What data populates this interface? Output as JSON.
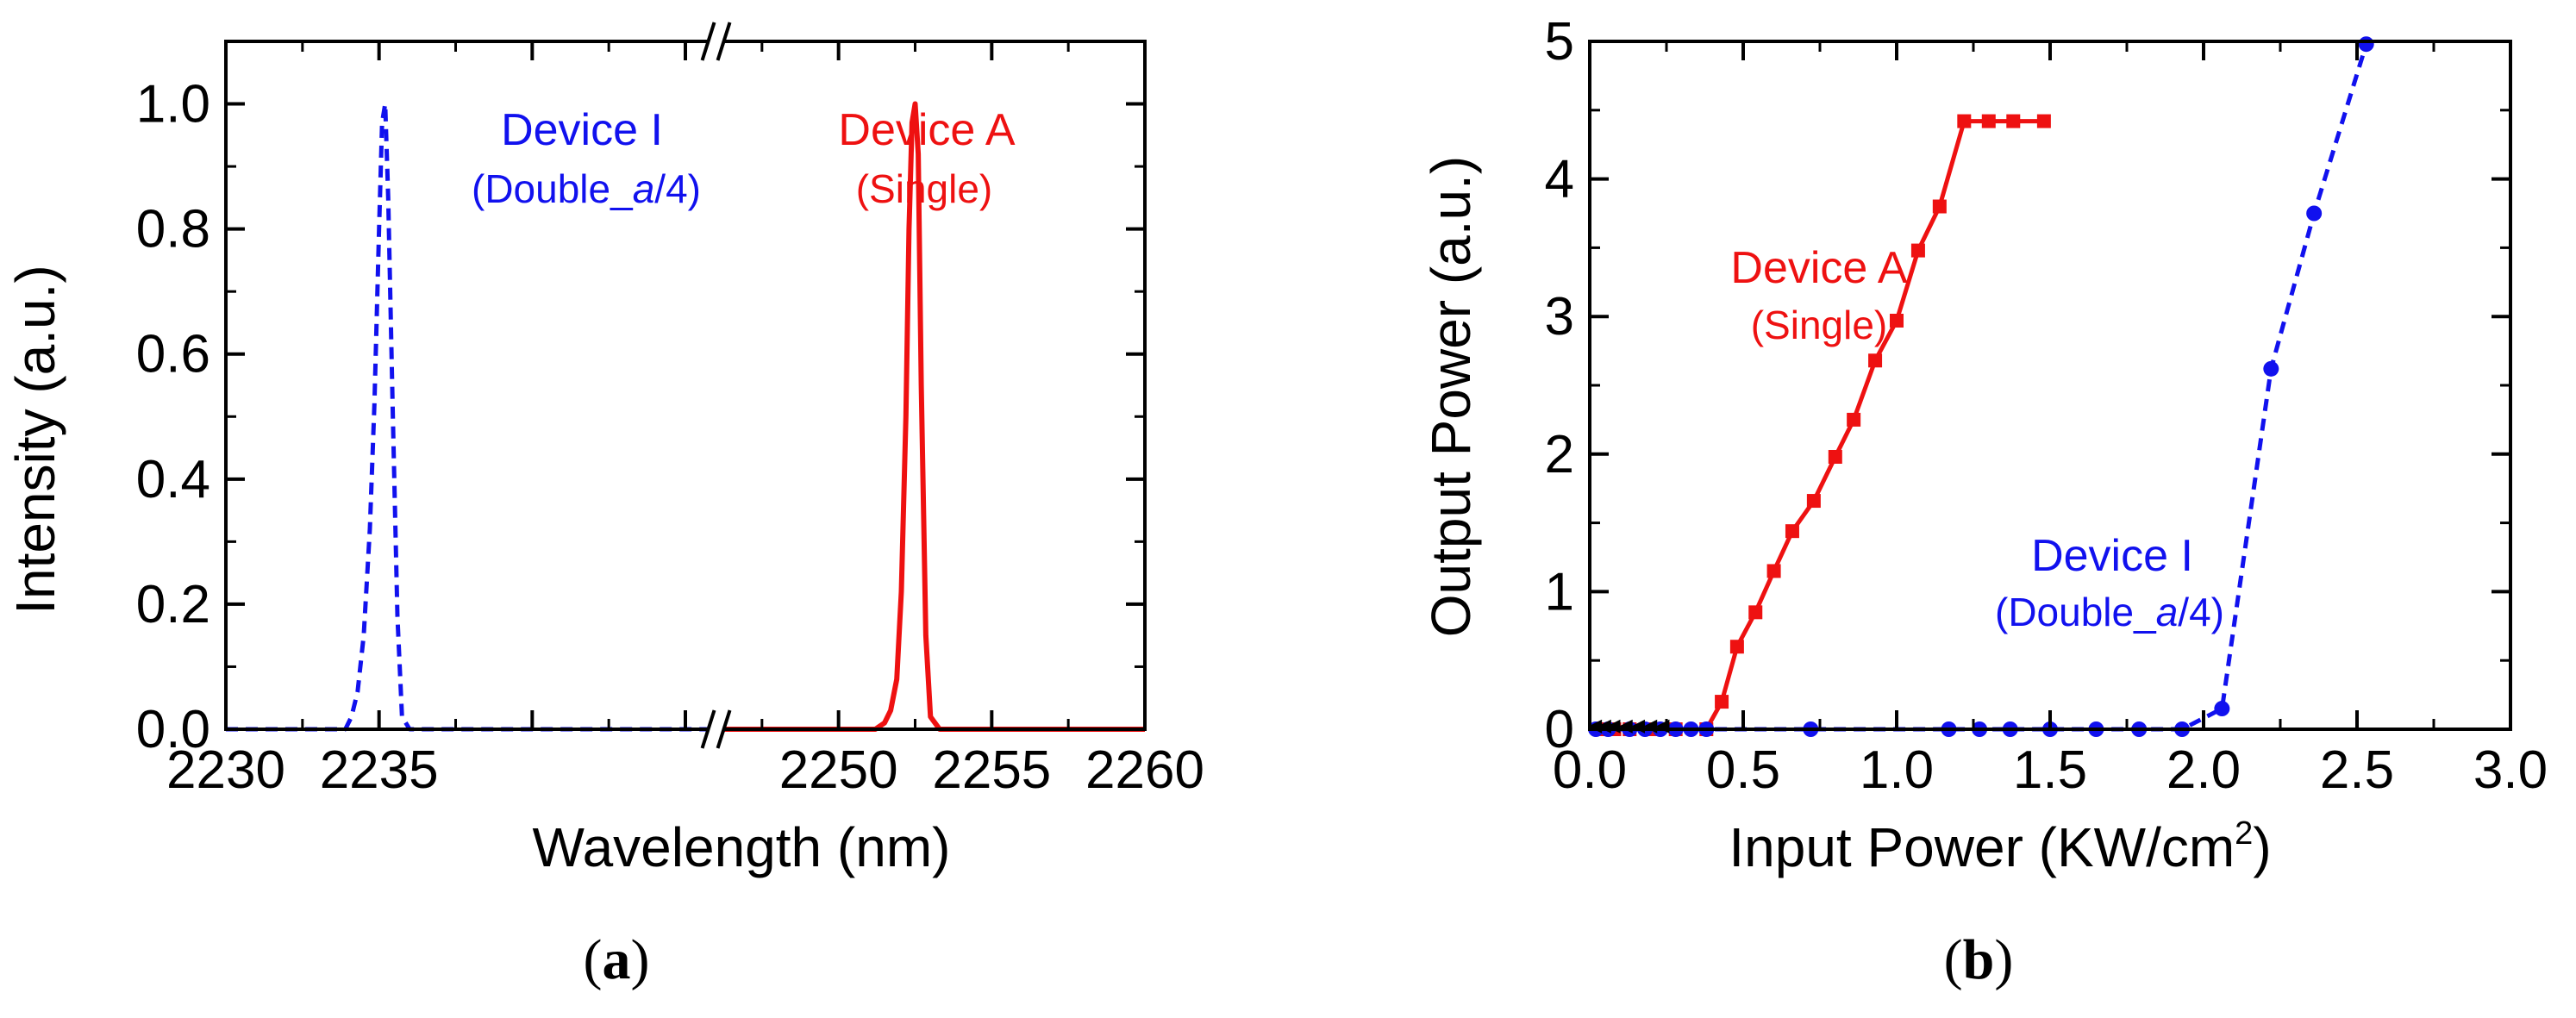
{
  "colors": {
    "device_a": "#ee1111",
    "device_i": "#1111ee",
    "axis": "#000000",
    "extra_marker": "#000000"
  },
  "chart_data": [
    {
      "type": "line",
      "panel_label": {
        "open": "(",
        "letter": "a",
        "close": ")"
      },
      "xlabel": "Wavelength (nm)",
      "ylabel": "Intensity (a.u.)",
      "xlim": [
        2230,
        2260
      ],
      "ylim": [
        0,
        1.1
      ],
      "axis_break_x": 2246,
      "xticks": [
        2230,
        2235,
        2240,
        2245,
        2250,
        2255,
        2260
      ],
      "xtick_labels": [
        "2230",
        "2235",
        "",
        "",
        "2250",
        "2255",
        "2260"
      ],
      "yticks": [
        0.0,
        0.2,
        0.4,
        0.6,
        0.8,
        1.0
      ],
      "ytick_labels": [
        "0.0",
        "0.2",
        "0.4",
        "0.6",
        "0.8",
        "1.0"
      ],
      "grid": false,
      "series": [
        {
          "name": "Device I",
          "style": "dashed",
          "x": [
            2230,
            2233.9,
            2234.1,
            2234.3,
            2234.5,
            2234.7,
            2234.85,
            2235.0,
            2235.1,
            2235.2,
            2235.3,
            2235.45,
            2235.6,
            2235.75,
            2236,
            2246
          ],
          "y": [
            0,
            0,
            0.02,
            0.06,
            0.15,
            0.32,
            0.52,
            0.8,
            0.97,
            1.0,
            0.85,
            0.5,
            0.18,
            0.02,
            0,
            0
          ]
        },
        {
          "name": "Device A",
          "style": "solid",
          "x": [
            2246,
            2251.2,
            2251.5,
            2251.7,
            2251.9,
            2252.05,
            2252.2,
            2252.3,
            2252.4,
            2252.5,
            2252.6,
            2252.7,
            2252.85,
            2253.0,
            2253.3,
            2260
          ],
          "y": [
            0,
            0,
            0.01,
            0.03,
            0.08,
            0.22,
            0.5,
            0.8,
            0.97,
            1.0,
            0.92,
            0.55,
            0.15,
            0.02,
            0,
            0
          ]
        }
      ],
      "annotations": [
        {
          "series": "Device I",
          "title": "Device I",
          "detail": {
            "before": "(Double_",
            "italic": "a",
            "after": "/4)"
          }
        },
        {
          "series": "Device A",
          "title": "Device A",
          "detail": {
            "before": "(Single)",
            "italic": "",
            "after": ""
          }
        }
      ]
    },
    {
      "type": "line",
      "panel_label": {
        "open": "(",
        "letter": "b",
        "close": ")"
      },
      "xlabel": {
        "main": "Input Power (KW/cm",
        "sup": "2",
        "end": ")"
      },
      "ylabel": "Output Power (a.u.)",
      "xlim": [
        0,
        3.0
      ],
      "ylim": [
        0,
        5
      ],
      "xticks": [
        0.0,
        0.5,
        1.0,
        1.5,
        2.0,
        2.5,
        3.0
      ],
      "xtick_labels": [
        "0.0",
        "0.5",
        "1.0",
        "1.5",
        "2.0",
        "2.5",
        "3.0"
      ],
      "yticks": [
        0,
        1,
        2,
        3,
        4,
        5
      ],
      "ytick_labels": [
        "0",
        "1",
        "2",
        "3",
        "4",
        "5"
      ],
      "grid": false,
      "series": [
        {
          "name": "Device A",
          "style": "solid",
          "marker": "square",
          "x": [
            0.03,
            0.08,
            0.13,
            0.2,
            0.28,
            0.38,
            0.43,
            0.48,
            0.54,
            0.6,
            0.66,
            0.73,
            0.8,
            0.86,
            0.93,
            1.0,
            1.07,
            1.14,
            1.22,
            1.3,
            1.38,
            1.48
          ],
          "y": [
            0,
            0,
            0,
            0,
            0,
            0,
            0.2,
            0.6,
            0.85,
            1.15,
            1.44,
            1.66,
            1.98,
            2.25,
            2.68,
            2.97,
            3.48,
            3.8,
            4.42,
            4.42,
            4.42,
            4.42
          ]
        },
        {
          "name": "Device I",
          "style": "dashed",
          "marker": "circle",
          "x": [
            0.02,
            0.06,
            0.13,
            0.18,
            0.23,
            0.28,
            0.33,
            0.38,
            0.72,
            1.17,
            1.27,
            1.37,
            1.5,
            1.65,
            1.79,
            1.93,
            2.06,
            2.22,
            2.36,
            2.53
          ],
          "y": [
            0,
            0,
            0,
            0,
            0,
            0,
            0,
            0,
            0,
            0,
            0,
            0,
            0,
            0,
            0,
            0,
            0.15,
            2.62,
            3.75,
            4.98
          ]
        },
        {
          "name": "",
          "style": "solid",
          "marker": "triangle-left",
          "x": [
            0.02,
            0.05,
            0.08,
            0.12,
            0.16,
            0.2,
            0.24
          ],
          "y": [
            0.02,
            0.02,
            0.02,
            0.02,
            0.02,
            0.02,
            0.02
          ]
        }
      ],
      "annotations": [
        {
          "series": "Device A",
          "title": "Device A",
          "detail": {
            "before": "(Single)",
            "italic": "",
            "after": ""
          }
        },
        {
          "series": "Device I",
          "title": "Device I",
          "detail": {
            "before": "(Double_",
            "italic": "a",
            "after": "/4)"
          }
        }
      ]
    }
  ]
}
